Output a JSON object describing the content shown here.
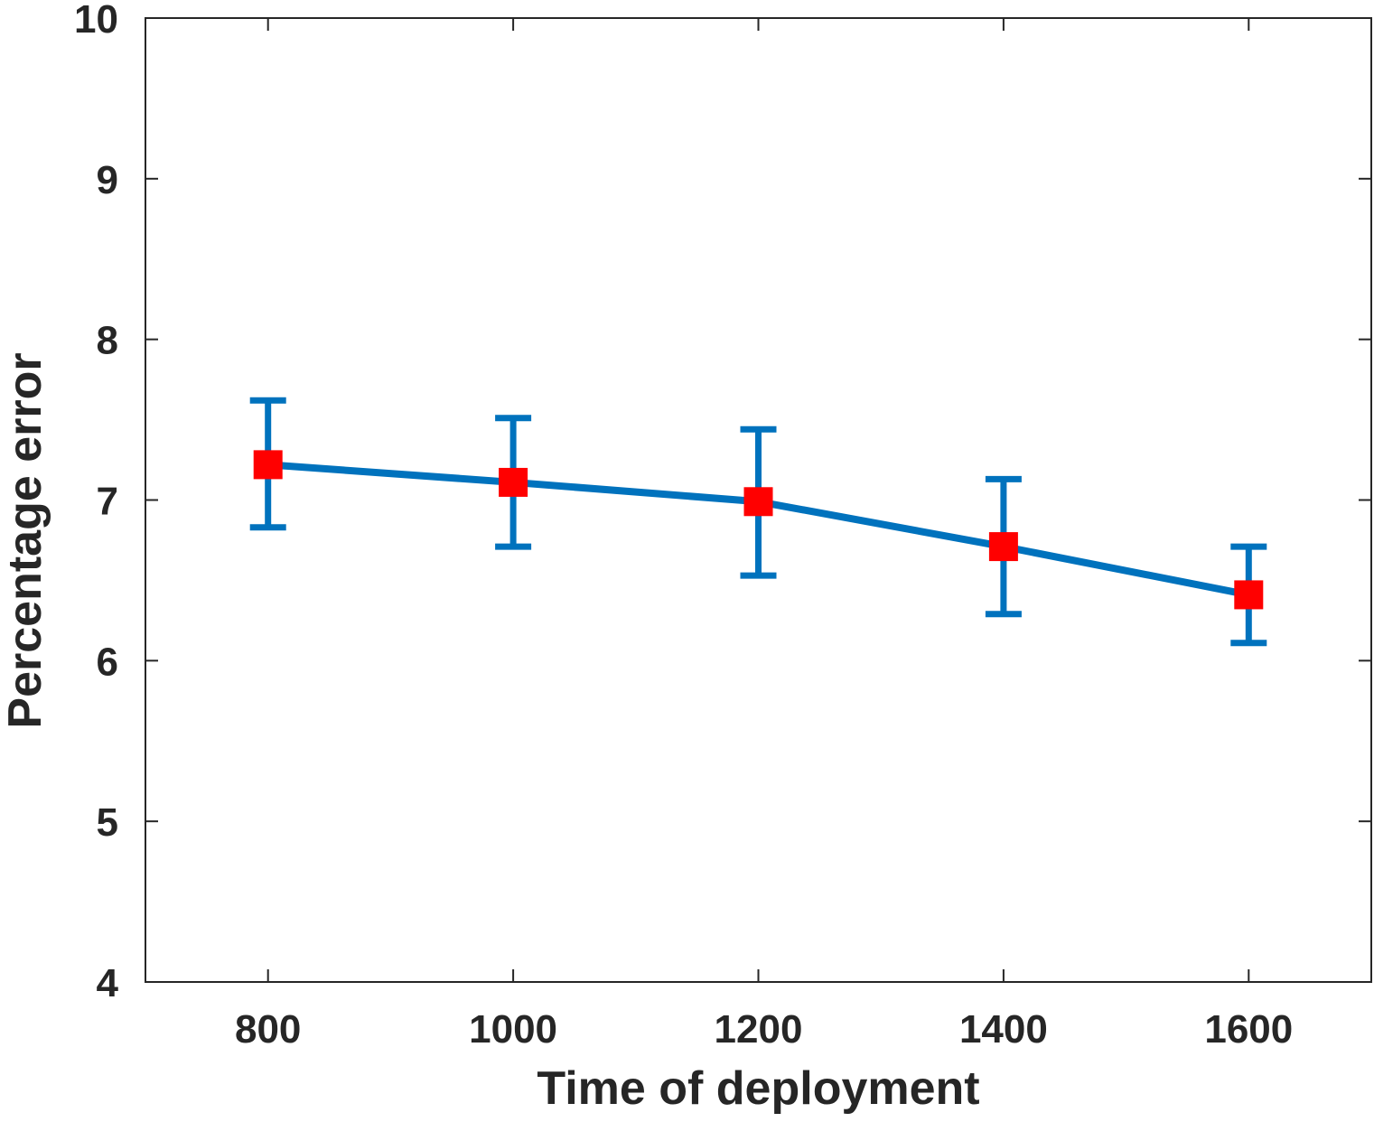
{
  "chart_data": {
    "type": "line",
    "title": "",
    "xlabel": "Time of deployment",
    "ylabel": "Percentage error",
    "xlim": [
      700,
      1700
    ],
    "ylim": [
      4,
      10
    ],
    "xticks": [
      800,
      1000,
      1200,
      1400,
      1600
    ],
    "yticks": [
      4,
      5,
      6,
      7,
      8,
      9,
      10
    ],
    "grid": false,
    "legend": "none",
    "series": [
      {
        "x": [
          800,
          1000,
          1200,
          1400,
          1600
        ],
        "y": [
          7.22,
          7.11,
          6.99,
          6.71,
          6.41
        ],
        "error_lower": [
          6.83,
          6.71,
          6.53,
          6.29,
          6.11
        ],
        "error_upper": [
          7.62,
          7.51,
          7.44,
          7.13,
          6.71
        ],
        "line_color": "#0072BD",
        "marker": "square",
        "marker_color": "#FF0000"
      }
    ]
  }
}
